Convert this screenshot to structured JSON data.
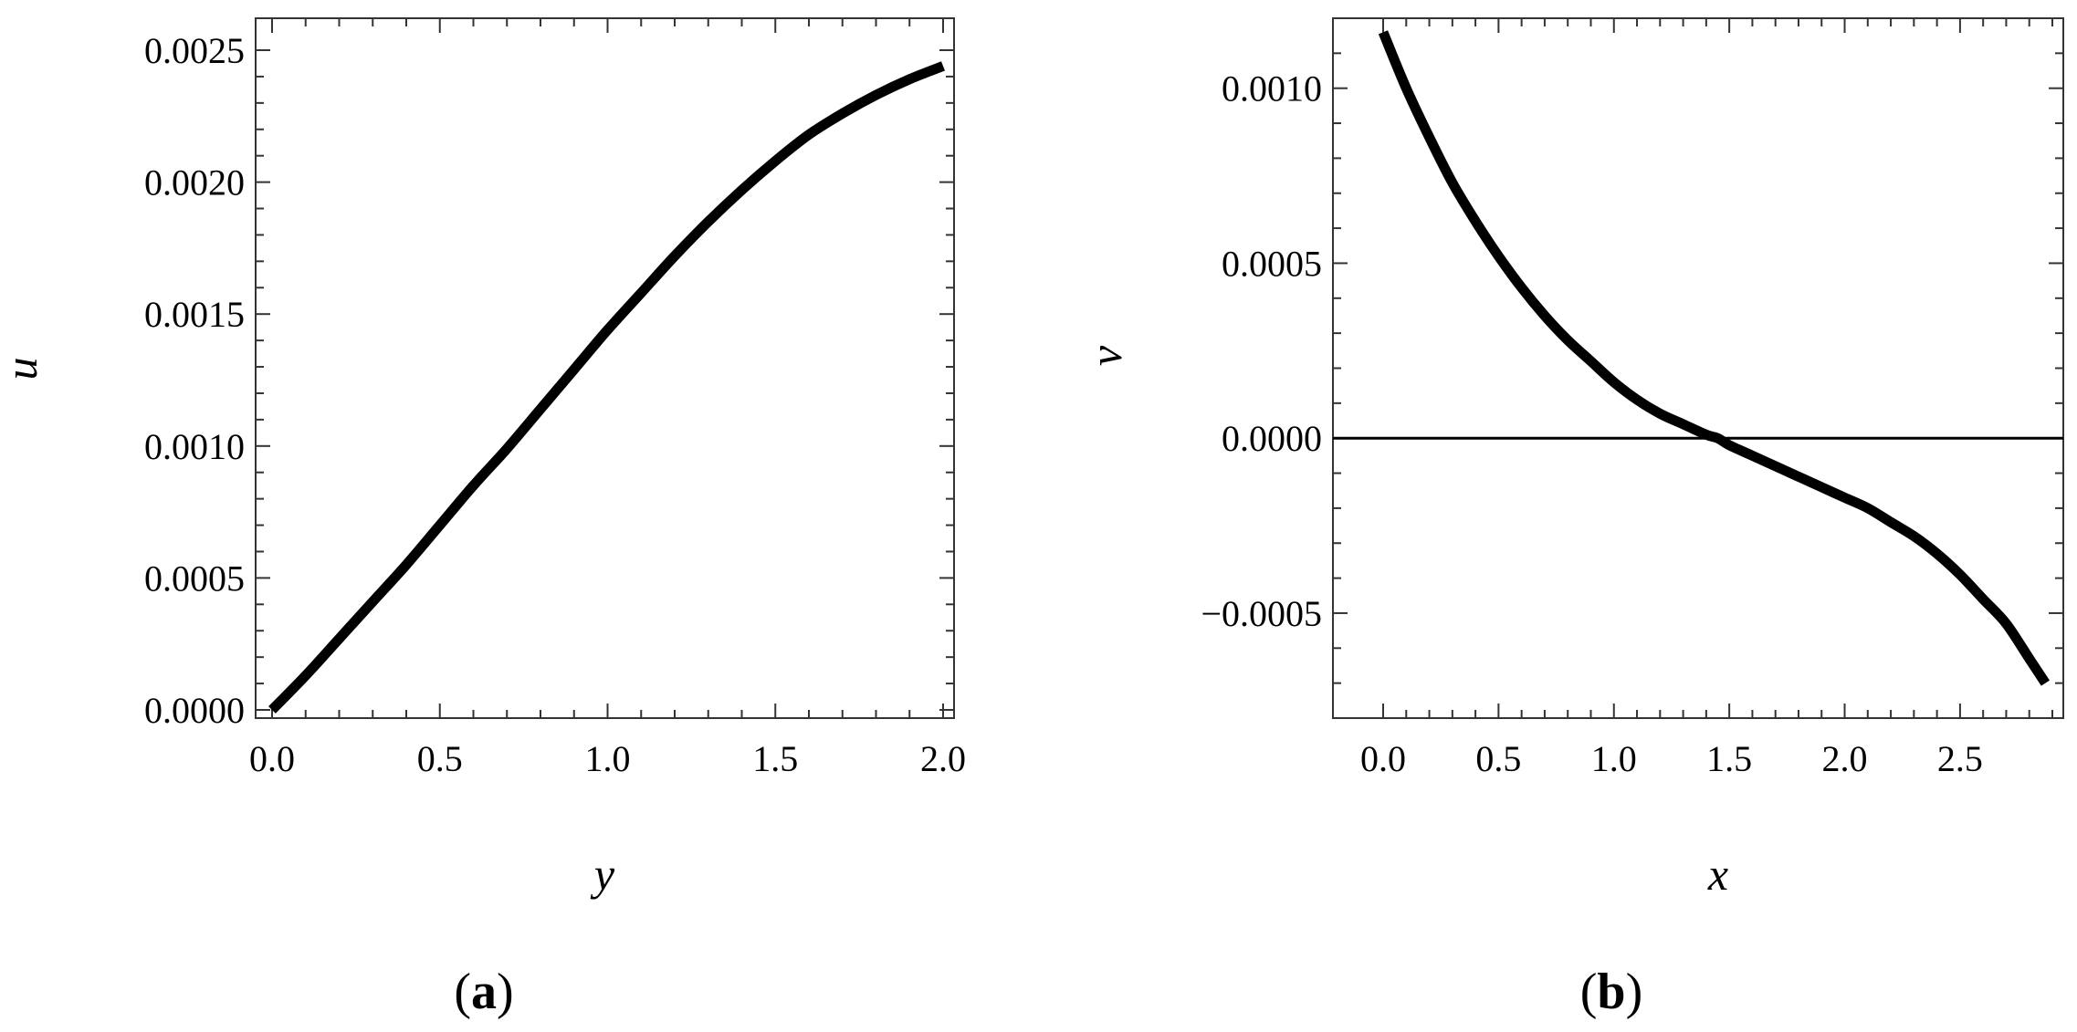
{
  "chart_data": [
    {
      "type": "line",
      "panel_label": "(a)",
      "panel_letter": "a",
      "title": "",
      "xlabel": "y",
      "ylabel": "u",
      "xlim": [
        0.0,
        2.0
      ],
      "ylim": [
        0.0,
        0.0025
      ],
      "x_ticks": [
        "0.0",
        "0.5",
        "1.0",
        "1.5",
        "2.0"
      ],
      "y_ticks": [
        "0.0000",
        "0.0005",
        "0.0010",
        "0.0015",
        "0.0020",
        "0.0025"
      ],
      "grid": false,
      "legend": "none",
      "zero_line": false,
      "series": [
        {
          "x": [
            0.0,
            0.1,
            0.2,
            0.3,
            0.4,
            0.5,
            0.6,
            0.7,
            0.8,
            0.9,
            1.0,
            1.1,
            1.2,
            1.3,
            1.4,
            1.5,
            1.6,
            1.7,
            1.8,
            1.9,
            2.0
          ],
          "y": [
            0.0,
            0.00013,
            0.00027,
            0.00041,
            0.00055,
            0.0007,
            0.00085,
            0.00099,
            0.00114,
            0.00129,
            0.00144,
            0.00158,
            0.00172,
            0.00185,
            0.00197,
            0.00208,
            0.00218,
            0.00226,
            0.00233,
            0.00239,
            0.00244
          ]
        }
      ]
    },
    {
      "type": "line",
      "panel_label": "(b)",
      "panel_letter": "b",
      "title": "",
      "xlabel": "x",
      "ylabel": "v",
      "xlim": [
        0.0,
        2.9
      ],
      "ylim": [
        -0.0008,
        0.0012
      ],
      "x_ticks": [
        "0.0",
        "0.5",
        "1.0",
        "1.5",
        "2.0",
        "2.5"
      ],
      "y_ticks": [
        "-0.0005",
        "0.0000",
        "0.0005",
        "0.0010"
      ],
      "grid": false,
      "legend": "none",
      "zero_line": true,
      "series": [
        {
          "x": [
            0.0,
            0.1,
            0.2,
            0.3,
            0.4,
            0.5,
            0.6,
            0.7,
            0.8,
            0.9,
            1.0,
            1.1,
            1.2,
            1.3,
            1.4,
            1.45,
            1.5,
            1.6,
            1.7,
            1.8,
            1.9,
            2.0,
            2.1,
            2.2,
            2.3,
            2.4,
            2.5,
            2.6,
            2.7,
            2.8,
            2.87
          ],
          "y": [
            0.00116,
            0.001,
            0.00086,
            0.00073,
            0.00062,
            0.00052,
            0.00043,
            0.00035,
            0.00028,
            0.00022,
            0.00016,
            0.00011,
            7e-05,
            4e-05,
            1e-05,
            0.0,
            -2e-05,
            -5e-05,
            -8e-05,
            -0.00011,
            -0.00014,
            -0.00017,
            -0.0002,
            -0.00024,
            -0.00028,
            -0.00033,
            -0.00039,
            -0.00046,
            -0.00053,
            -0.00063,
            -0.0007
          ]
        }
      ]
    }
  ]
}
